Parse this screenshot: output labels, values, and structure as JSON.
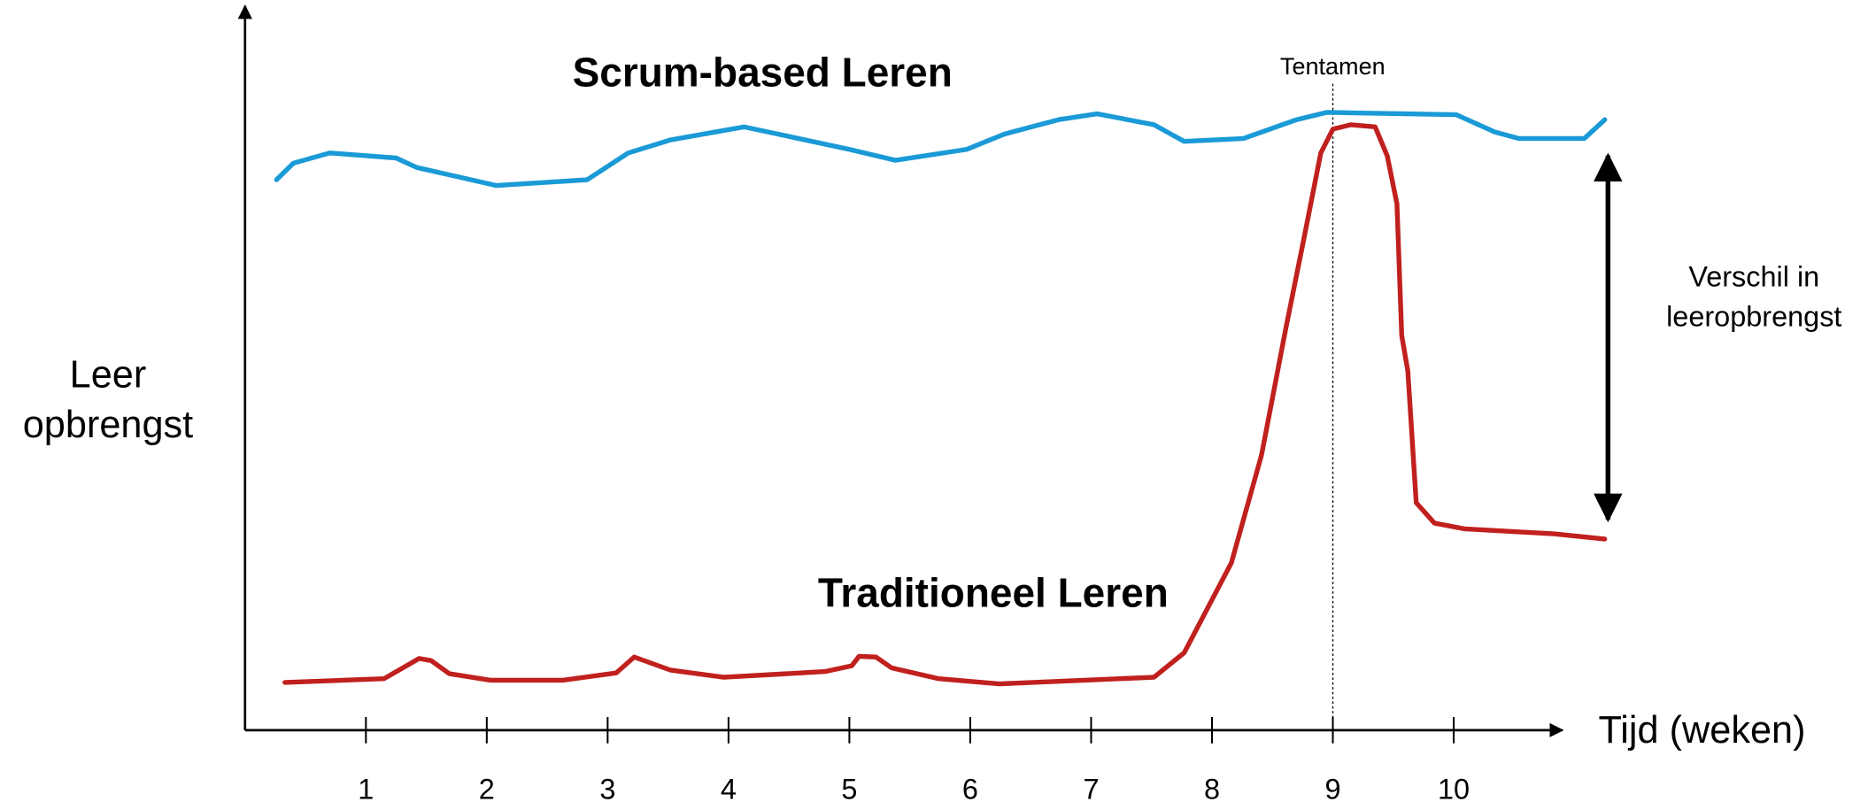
{
  "chart_data": {
    "type": "line",
    "xlabel": "Tijd (weken)",
    "ylabel": [
      "Leer",
      "opbrengst"
    ],
    "xlim": [
      0,
      10.9
    ],
    "ylim": [
      0,
      100
    ],
    "xticks": [
      1,
      2,
      3,
      4,
      5,
      6,
      7,
      8,
      9,
      10
    ],
    "grid": false,
    "marker_line": {
      "x": 9,
      "label": "Tentamen"
    },
    "annotation": [
      "Verschil in",
      "leeropbrengst"
    ],
    "series": [
      {
        "name": "Scrum-based Leren",
        "color": "#1a9ad6",
        "x": [
          0.26,
          0.4,
          0.7,
          1.25,
          1.42,
          2.08,
          2.83,
          3.17,
          3.52,
          4.13,
          5.0,
          5.38,
          5.97,
          6.28,
          6.73,
          7.05,
          7.52,
          7.77,
          8.26,
          8.7,
          8.95,
          10.02,
          10.34,
          10.54,
          11.08,
          11.25
        ],
        "values": [
          76,
          78.3,
          79.7,
          79,
          77.7,
          75.2,
          76,
          79.7,
          81.5,
          83.3,
          80.2,
          78.7,
          80.2,
          82.3,
          84.3,
          85.1,
          83.6,
          81.3,
          81.7,
          84.3,
          85.3,
          85,
          82.6,
          81.7,
          81.7,
          84.3
        ]
      },
      {
        "name": "Traditioneel Leren",
        "color": "#c0201e",
        "x": [
          0.33,
          1.15,
          1.44,
          1.54,
          1.69,
          2.03,
          2.63,
          3.07,
          3.22,
          3.52,
          3.96,
          4.8,
          5.02,
          5.08,
          5.22,
          5.35,
          5.74,
          6.24,
          7.52,
          7.77,
          8.16,
          8.41,
          8.61,
          8.76,
          8.9,
          9.0,
          9.15,
          9.35,
          9.45,
          9.53,
          9.57,
          9.62,
          9.69,
          9.84,
          10.09,
          10.83,
          11.25
        ],
        "values": [
          6.6,
          7.1,
          9.9,
          9.6,
          7.8,
          6.9,
          6.9,
          7.9,
          10.1,
          8.3,
          7.3,
          8.1,
          8.9,
          10.2,
          10.1,
          8.6,
          7.1,
          6.4,
          7.3,
          10.7,
          23.1,
          38,
          55.4,
          67.8,
          79.7,
          83,
          83.6,
          83.3,
          79.3,
          72.7,
          54.5,
          49.6,
          31.4,
          28.6,
          27.8,
          27.1,
          26.4
        ]
      }
    ]
  }
}
